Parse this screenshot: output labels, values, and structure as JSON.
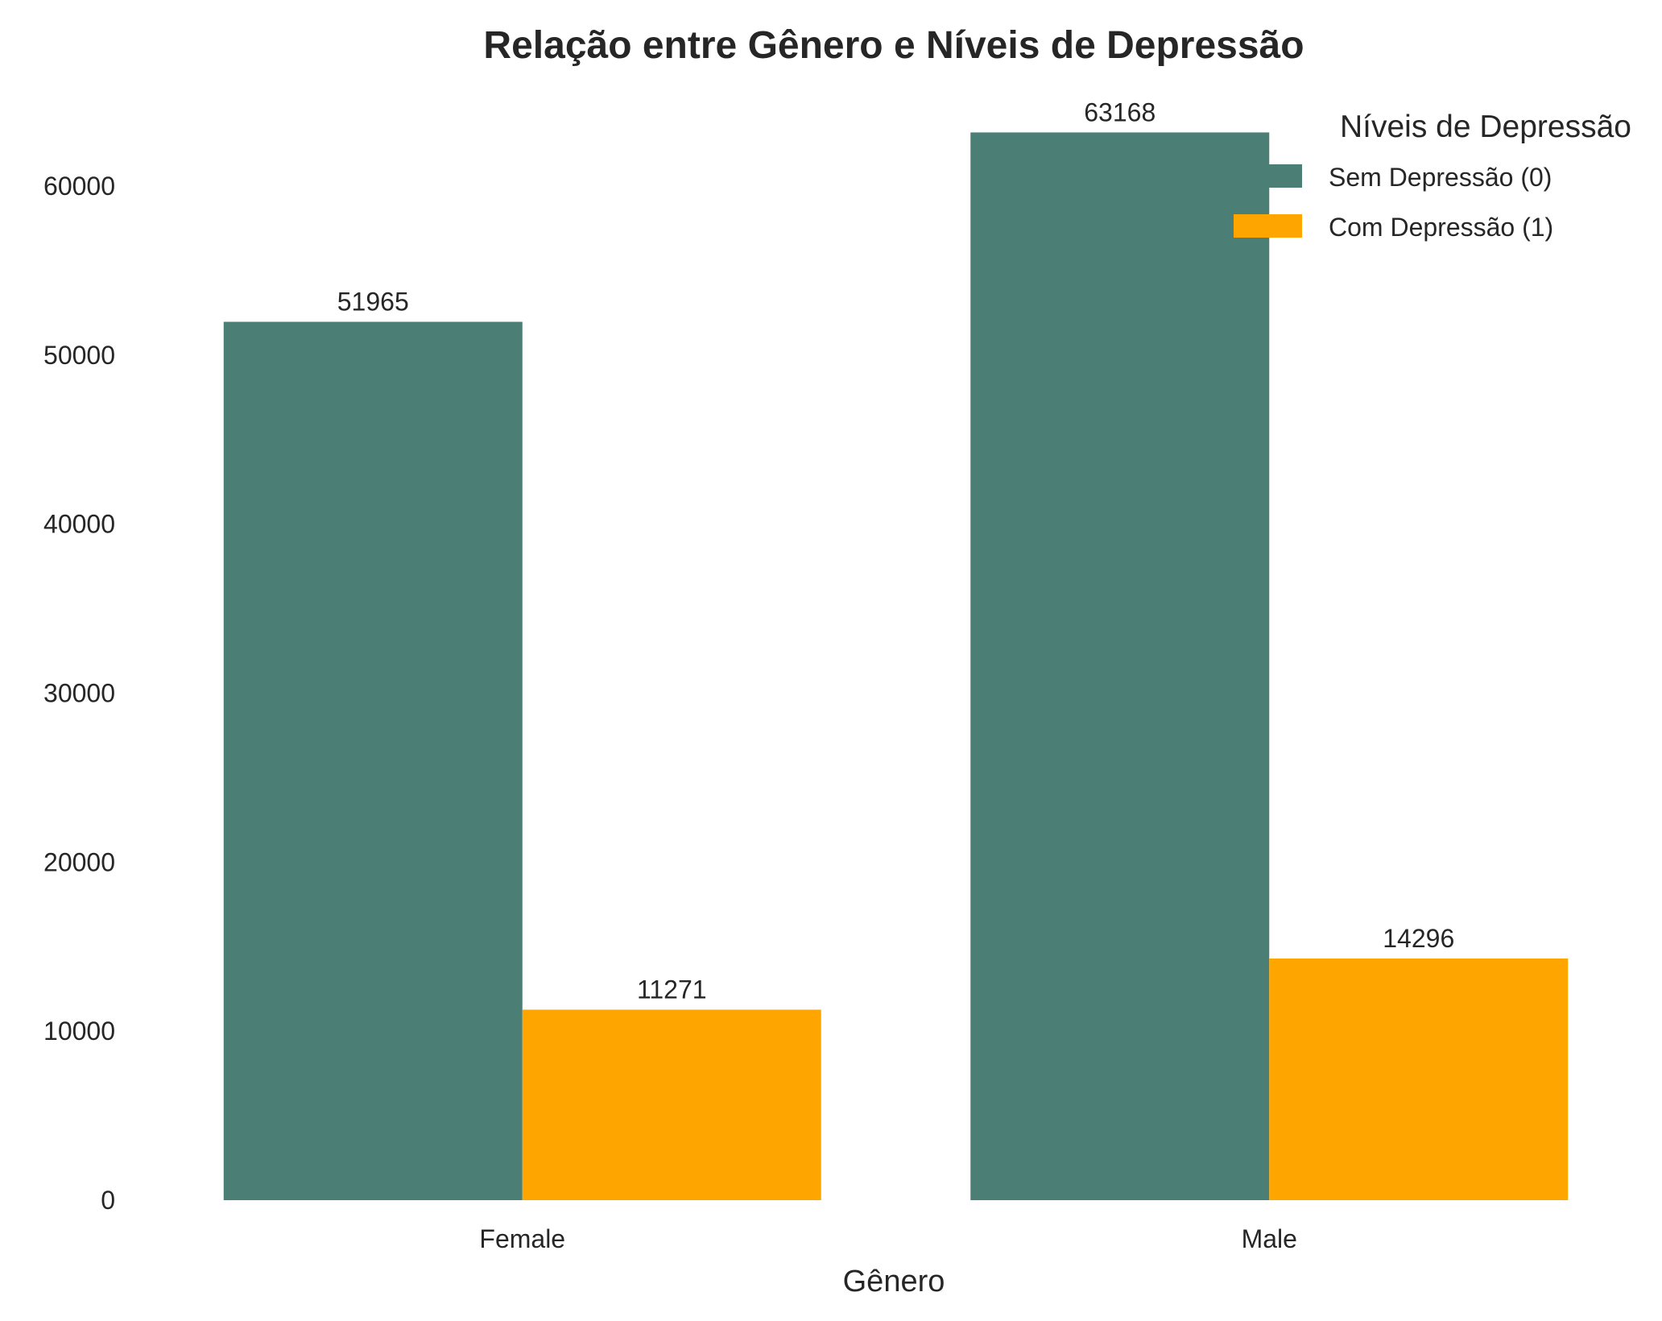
{
  "chart_data": {
    "type": "bar",
    "title": "Relação entre Gênero e Níveis de Depressão",
    "xlabel": "Gênero",
    "ylabel": "",
    "categories": [
      "Female",
      "Male"
    ],
    "series": [
      {
        "name": "Sem Depressão (0)",
        "values": [
          51965,
          63168
        ],
        "color": "#4b7f76"
      },
      {
        "name": "Com Depressão (1)",
        "values": [
          11271,
          14296
        ],
        "color": "#ffa500"
      }
    ],
    "ylim": [
      0,
      66000
    ],
    "yticks": [
      0,
      10000,
      20000,
      30000,
      40000,
      50000,
      60000
    ],
    "grid": false,
    "legend": {
      "title": "Níveis de Depressão",
      "placement": "top-right"
    }
  }
}
